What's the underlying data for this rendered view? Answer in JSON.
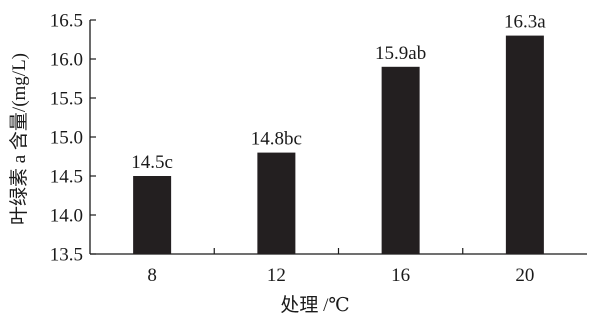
{
  "chart_data": {
    "type": "bar",
    "categories": [
      "8",
      "12",
      "16",
      "20"
    ],
    "values": [
      14.5,
      14.8,
      15.9,
      16.3
    ],
    "data_labels": [
      "14.5c",
      "14.8bc",
      "15.9ab",
      "16.3a"
    ],
    "xlabel": "处理 /℃",
    "ylabel": "叶绿素 a 含量/(mg/L)",
    "ylim": [
      13.5,
      16.5
    ],
    "yticks": [
      "13.5",
      "14.0",
      "14.5",
      "15.0",
      "15.5",
      "16.0",
      "16.5"
    ],
    "bar_color": "#231f20",
    "grid": false,
    "legend": "none"
  }
}
